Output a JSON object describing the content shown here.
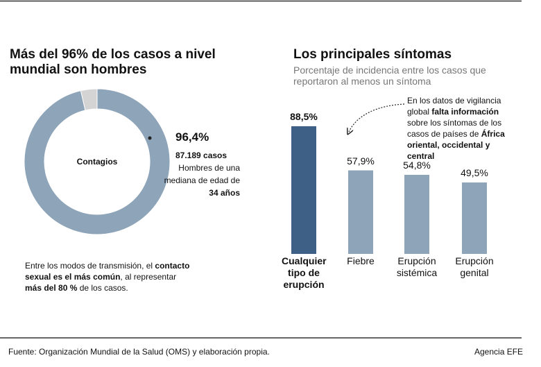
{
  "chart_data": [
    {
      "type": "donut",
      "title": "Más del 96% de los casos a nivel mundial son hombres",
      "center_label": "Contagios",
      "values": [
        96.4,
        3.6
      ],
      "value_labels": [
        "96,4%",
        null
      ],
      "colors": [
        "#8ea4b9",
        "#d4d4d4"
      ],
      "annotation": [
        [
          {
            "text": "87.189 casos",
            "bold": true
          }
        ],
        [
          {
            "text": "Hombres de una mediana de edad de ",
            "bold": false
          },
          {
            "text": "34 años",
            "bold": true
          }
        ]
      ],
      "note": [
        {
          "text": "Entre los modos de transmisión, el ",
          "bold": false
        },
        {
          "text": "contacto sexual es el más común",
          "bold": true
        },
        {
          "text": ", al representar ",
          "bold": false
        },
        {
          "text": "más del 80 %",
          "bold": true
        },
        {
          "text": " de los casos.",
          "bold": false
        }
      ]
    },
    {
      "type": "bar",
      "title": "Los principales síntomas",
      "subtitle": "Porcentaje de incidencia entre los casos que reportaron al menos un síntoma",
      "categories": [
        "Cualquier tipo de erupción",
        "Fiebre",
        "Erupción sistémica",
        "Erupción genital"
      ],
      "values": [
        88.5,
        57.9,
        54.8,
        49.5
      ],
      "value_labels": [
        "88,5%",
        "57,9%",
        "54,8%",
        "49,5%"
      ],
      "colors": [
        "#3e5f86",
        "#8ea4b9",
        "#8ea4b9",
        "#8ea4b9"
      ],
      "bold": [
        true,
        false,
        false,
        false
      ],
      "ylim": [
        0,
        100
      ],
      "annotation": [
        {
          "text": "En los datos de vigilancia global ",
          "bold": false
        },
        {
          "text": "falta información",
          "bold": true
        },
        {
          "text": " sobre los síntomas de los casos de países de ",
          "bold": false
        },
        {
          "text": "África oriental, occidental y central",
          "bold": true
        }
      ]
    }
  ],
  "source": "Fuente: Organización Mundial de la Salud (OMS) y elaboración propia.",
  "credit": "Agencia EFE"
}
